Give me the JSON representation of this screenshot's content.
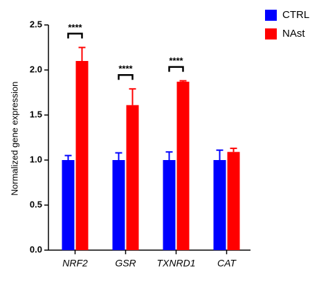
{
  "chart_data": {
    "type": "bar",
    "y_label": "Normalized gene expression",
    "categories": [
      "NRF2",
      "GSR",
      "TXNRD1",
      "CAT"
    ],
    "series": [
      {
        "name": "CTRL",
        "color": "#0000ff",
        "values": [
          1.0,
          1.0,
          1.0,
          1.0
        ],
        "errors": [
          0.05,
          0.08,
          0.09,
          0.11
        ]
      },
      {
        "name": "NAst",
        "color": "#ff0000",
        "values": [
          2.1,
          1.61,
          1.87,
          1.09
        ],
        "errors": [
          0.15,
          0.18,
          0.01,
          0.04
        ]
      }
    ],
    "significance": [
      "****",
      "****",
      "****",
      null
    ],
    "ylim": [
      0,
      2.5
    ],
    "yticks": [
      {
        "value": 0,
        "label": "0.0"
      },
      0.5,
      {
        "value": 1,
        "label": "1.0"
      },
      1.5,
      {
        "value": 2,
        "label": "2.0"
      },
      2.5
    ],
    "legend": "top-right"
  }
}
